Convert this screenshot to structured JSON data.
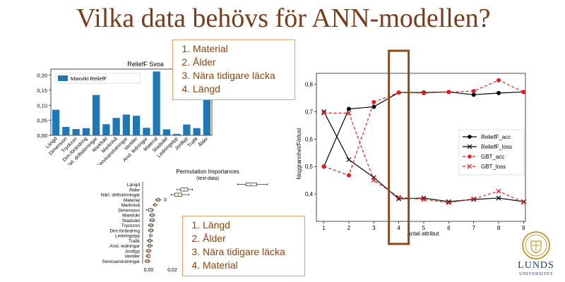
{
  "slide": {
    "title": "Vilka data behövs för ANN-modellen?",
    "list_top": [
      "Material",
      "Ålder",
      "Nära tidigare läcka",
      "Längd"
    ],
    "list_bottom": [
      "Längd",
      "Ålder",
      "Nära tidigare läcka",
      "Material"
    ],
    "logo_text_line1": "LUNDS",
    "logo_text_line2": "UNIVERSITET"
  },
  "chart_data": [
    {
      "type": "bar",
      "title": "ReliefF Svoa",
      "legend": "Maxvikt ReliefF",
      "legend_position": "top-left",
      "color": "#1f77b4",
      "categories": [
        "Längd",
        "Dimension",
        "Tryckzon",
        "Dim.förändring",
        "Närl. driftstörningar",
        "Markfukt",
        "Marknivå",
        "Servisanslutningar",
        "Ventiler",
        "Ansl. ledningar",
        "Material",
        "Stadsdel",
        "Ledningstyp",
        "Jordtyp",
        "Trafik",
        "Ålder"
      ],
      "values": [
        0.085,
        0.028,
        0.021,
        0.024,
        0.134,
        0.037,
        0.058,
        0.069,
        0.065,
        0.025,
        0.212,
        0.02,
        0.005,
        0.036,
        0.024,
        0.195
      ],
      "ylim": [
        0,
        0.22
      ],
      "yticks": [
        "0,00",
        "0,05",
        "0,10",
        "0,15",
        "0,20"
      ],
      "ytick_values": [
        0.0,
        0.05,
        0.1,
        0.15,
        0.2
      ]
    },
    {
      "type": "box",
      "title": "Permutation Importances",
      "subtitle": "(test-data)",
      "categories": [
        "Längd",
        "Ålder",
        "Närl. driftstörningar",
        "Material",
        "Marknivå",
        "Dimension",
        "Markfukt",
        "Stadsdel",
        "Tryckzon",
        "Dim.förändring",
        "Ledningstyp",
        "Trafik",
        "Ansl. ledningar",
        "Jordtyp",
        "Ventiler",
        "Servisanslutningar"
      ],
      "boxes": [
        {
          "min": 0.075,
          "q1": 0.082,
          "median": 0.086,
          "q3": 0.091,
          "max": 0.1
        },
        {
          "min": 0.024,
          "q1": 0.027,
          "median": 0.03,
          "q3": 0.033,
          "max": 0.037
        },
        {
          "min": 0.019,
          "q1": 0.022,
          "median": 0.025,
          "q3": 0.028,
          "max": 0.034
        },
        {
          "min": 0.006,
          "q1": 0.007,
          "median": 0.008,
          "q3": 0.009,
          "max": 0.01
        },
        {
          "min": 0.004,
          "q1": 0.005,
          "median": 0.006,
          "q3": 0.006,
          "max": 0.007
        },
        {
          "min": -0.002,
          "q1": 0.0,
          "median": 0.002,
          "q3": 0.003,
          "max": 0.004
        },
        {
          "min": 0.001,
          "q1": 0.002,
          "median": 0.003,
          "q3": 0.004,
          "max": 0.005
        },
        {
          "min": 0.001,
          "q1": 0.002,
          "median": 0.003,
          "q3": 0.004,
          "max": 0.005
        },
        {
          "min": 0.0,
          "q1": 0.001,
          "median": 0.002,
          "q3": 0.003,
          "max": 0.004
        },
        {
          "min": 0.0,
          "q1": 0.001,
          "median": 0.002,
          "q3": 0.003,
          "max": 0.004
        },
        {
          "min": 0.001,
          "q1": 0.001,
          "median": 0.002,
          "q3": 0.002,
          "max": 0.003
        },
        {
          "min": -0.001,
          "q1": 0.0,
          "median": 0.001,
          "q3": 0.002,
          "max": 0.003
        },
        {
          "min": -0.001,
          "q1": 0.0,
          "median": 0.001,
          "q3": 0.002,
          "max": 0.003
        },
        {
          "min": -0.002,
          "q1": -0.001,
          "median": 0.0,
          "q3": 0.001,
          "max": 0.002
        },
        {
          "min": -0.002,
          "q1": -0.001,
          "median": 0.0,
          "q3": 0.001,
          "max": 0.001
        },
        {
          "min": -0.003,
          "q1": -0.002,
          "median": -0.001,
          "q3": 0.0,
          "max": 0.001
        }
      ],
      "outliers": [
        {
          "category": "Material",
          "value": 0.014
        }
      ],
      "xlim": [
        -0.005,
        0.105
      ],
      "xticks": [
        "0,00",
        "0,02",
        "0,10"
      ],
      "xtick_values": [
        0.0,
        0.02,
        0.1
      ],
      "color": "#d98a4a"
    },
    {
      "type": "line",
      "xlabel": "Antal attribut",
      "ylabel": "Noggrannhet/Förlust",
      "x": [
        1,
        2,
        3,
        4,
        5,
        6,
        7,
        8,
        9
      ],
      "xlim": [
        0.7,
        9.3
      ],
      "ylim": [
        0.3,
        0.84
      ],
      "yticks": [
        "0,4",
        "0,5",
        "0,6",
        "0,7",
        "0,8"
      ],
      "ytick_values": [
        0.4,
        0.5,
        0.6,
        0.7,
        0.8
      ],
      "legend_position": "center-right",
      "highlight_x": 4,
      "series": [
        {
          "name": "ReliefF_acc",
          "color": "#000000",
          "dash": "solid",
          "marker": "circle",
          "values": [
            0.5,
            0.71,
            0.718,
            0.77,
            0.77,
            0.772,
            0.762,
            0.768,
            0.772
          ]
        },
        {
          "name": "ReliefF_loss",
          "color": "#000000",
          "dash": "solid",
          "marker": "x",
          "values": [
            0.7,
            0.525,
            0.46,
            0.382,
            0.385,
            0.372,
            0.38,
            0.385,
            0.372
          ]
        },
        {
          "name": "GBT_acc",
          "color": "#e11d1d",
          "dash": "dashed",
          "marker": "circle",
          "values": [
            0.5,
            0.468,
            0.735,
            0.77,
            0.768,
            0.772,
            0.775,
            0.815,
            0.772
          ]
        },
        {
          "name": "GBT_loss",
          "color": "#e11d1d",
          "dash": "dashed",
          "marker": "x",
          "values": [
            0.695,
            0.695,
            0.45,
            0.388,
            0.38,
            0.368,
            0.382,
            0.41,
            0.37
          ]
        }
      ]
    }
  ]
}
